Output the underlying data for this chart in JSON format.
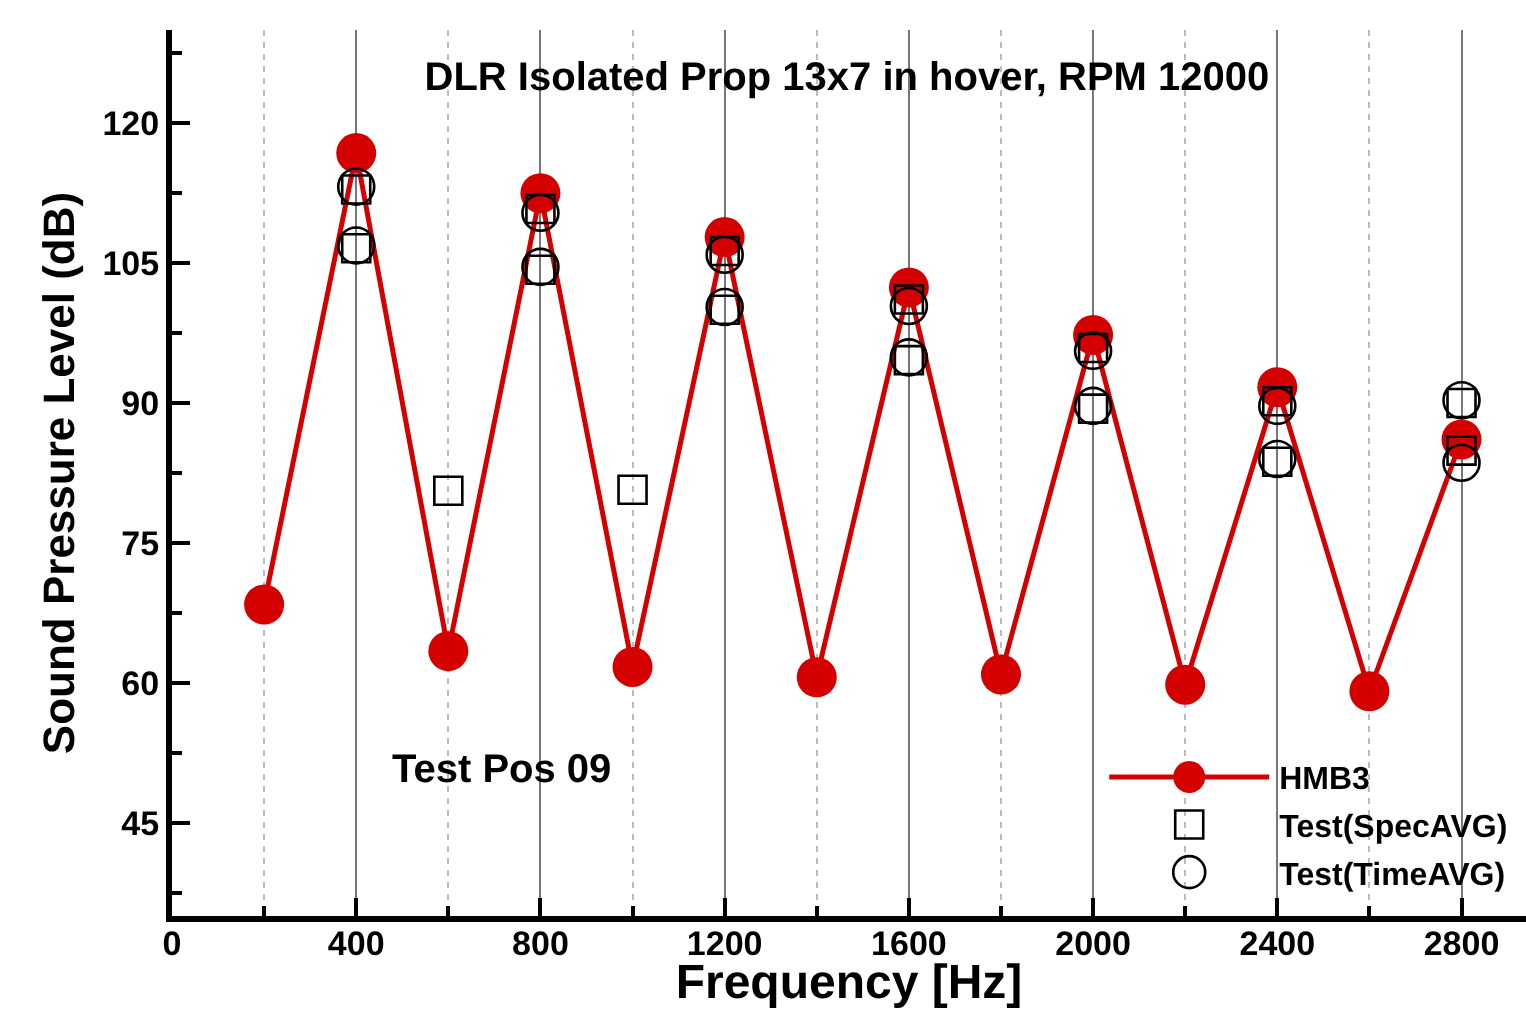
{
  "chart_data": {
    "type": "line",
    "title": "DLR Isolated Prop 13x7 in hover, RPM 12000",
    "xlabel": "Frequency [Hz]",
    "ylabel": "Sound Pressure Level (dB)",
    "xlim": [
      0,
      2940
    ],
    "xticks": [
      0,
      400,
      800,
      1200,
      1600,
      2000,
      2400,
      2800
    ],
    "ylim": [
      35,
      130
    ],
    "yticks": [
      45,
      60,
      75,
      90,
      105,
      120
    ],
    "grid": "x",
    "legend": "bottom right",
    "annotations": [
      "Test Pos 09"
    ],
    "series": [
      {
        "name": "HMB3",
        "type": "line",
        "marker": "circle",
        "color": "#d40000",
        "x": [
          200,
          400,
          600,
          800,
          1000,
          1200,
          1400,
          1600,
          1800,
          2000,
          2200,
          2400,
          2600,
          2800
        ],
        "values": [
          68.4,
          116.8,
          63.4,
          112.5,
          61.7,
          107.8,
          60.6,
          102.4,
          60.9,
          97.3,
          59.8,
          91.7,
          59.1,
          86.1
        ]
      },
      {
        "name": "Test(SpecAVG)",
        "type": "scatter",
        "marker": "square",
        "color": "#000000",
        "x": [
          400,
          400,
          600,
          800,
          800,
          1000,
          1200,
          1200,
          1600,
          1600,
          2000,
          2000,
          2400,
          2400,
          2800,
          2800
        ],
        "values": [
          112.9,
          106.6,
          80.6,
          110.8,
          104.3,
          80.7,
          106.3,
          100.0,
          101.1,
          94.6,
          95.9,
          89.4,
          90.2,
          83.7,
          90.0,
          84.9
        ]
      },
      {
        "name": "Test(TimeAVG)",
        "type": "scatter",
        "marker": "circle",
        "color": "#000000",
        "x": [
          400,
          400,
          800,
          800,
          1200,
          1200,
          1600,
          1600,
          2000,
          2000,
          2400,
          2400,
          2800,
          2800
        ],
        "values": [
          113.2,
          106.9,
          110.4,
          104.6,
          105.9,
          100.3,
          100.4,
          94.9,
          95.6,
          89.7,
          89.7,
          84.0,
          90.3,
          83.6
        ]
      }
    ]
  }
}
